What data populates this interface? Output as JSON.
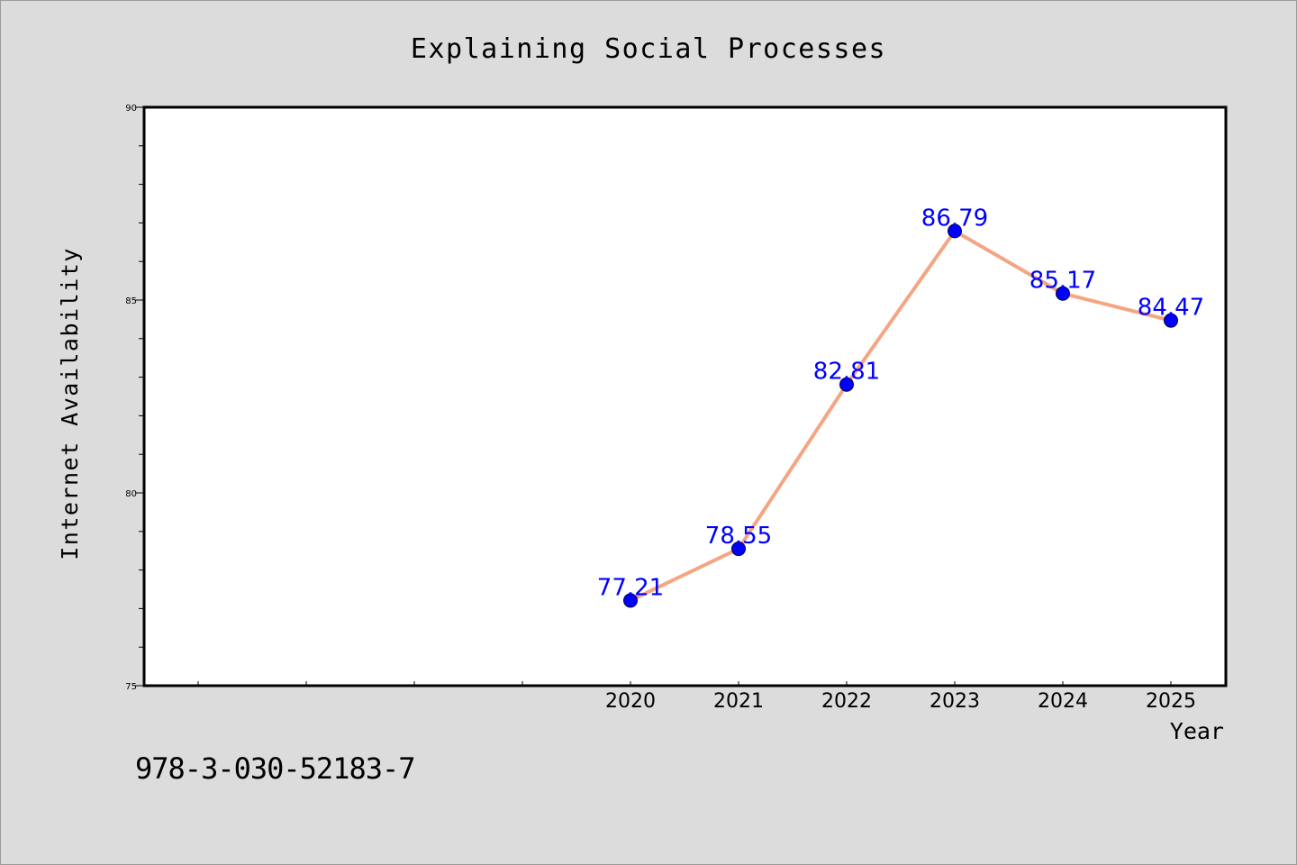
{
  "chart_data": {
    "type": "line",
    "title": "Explaining Social Processes",
    "xlabel": "Year",
    "ylabel": "Internet Availability",
    "categories": [
      "2020",
      "2021",
      "2022",
      "2023",
      "2024",
      "2025"
    ],
    "values": [
      77.21,
      78.55,
      82.81,
      86.79,
      85.17,
      84.47
    ],
    "data_labels": [
      "77.21",
      "78.55",
      "82.81",
      "86.79",
      "85.17",
      "84.47"
    ],
    "ylim": [
      75,
      90
    ],
    "yticks": [
      "75",
      "80",
      "85",
      "90"
    ],
    "grid": false,
    "line_color": "#f4a582",
    "marker_color": "#0000ff",
    "label_color": "#0000ff"
  },
  "footer": {
    "isbn": "978-3-030-52183-7"
  }
}
